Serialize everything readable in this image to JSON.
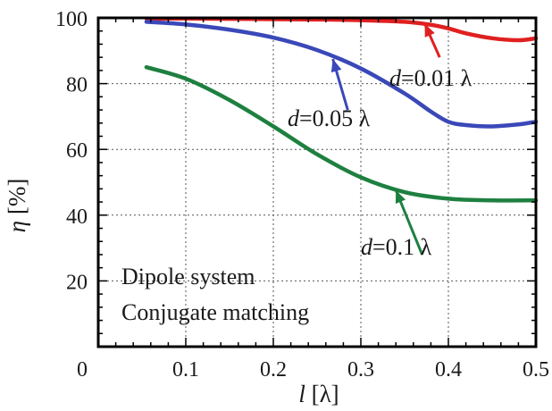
{
  "chart_data": {
    "type": "line",
    "xlabel": {
      "symbol": "l",
      "unit": "[λ]"
    },
    "ylabel": {
      "symbol": "η",
      "unit": "[%]"
    },
    "xlim": [
      0,
      0.5
    ],
    "ylim": [
      0,
      100
    ],
    "xticks": [
      0,
      0.1,
      0.2,
      0.3,
      0.4,
      0.5
    ],
    "yticks": [
      20,
      40,
      60,
      80,
      100
    ],
    "xtick_labels": [
      "0",
      "0.1",
      "0.2",
      "0.3",
      "0.4",
      "0.5"
    ],
    "ytick_labels": [
      "20",
      "40",
      "60",
      "80",
      "100"
    ],
    "grid": true,
    "series": [
      {
        "name": "d=0.01 λ",
        "color": "#e02020",
        "label": {
          "prefix": "d",
          "text": "=0.01 λ"
        },
        "x": [
          0.055,
          0.1,
          0.15,
          0.2,
          0.25,
          0.3,
          0.35,
          0.38,
          0.4,
          0.42,
          0.45,
          0.48,
          0.5
        ],
        "y": [
          99.8,
          99.8,
          99.7,
          99.6,
          99.5,
          99.3,
          98.8,
          97.9,
          96.8,
          95.3,
          93.8,
          93.2,
          93.8
        ]
      },
      {
        "name": "d=0.05 λ",
        "color": "#3a48b8",
        "label": {
          "prefix": "d",
          "text": "=0.05 λ"
        },
        "x": [
          0.055,
          0.1,
          0.15,
          0.2,
          0.25,
          0.3,
          0.35,
          0.38,
          0.4,
          0.42,
          0.45,
          0.48,
          0.5
        ],
        "y": [
          98.8,
          98.0,
          96.4,
          94.0,
          90.2,
          84.6,
          77.0,
          71.5,
          68.4,
          67.4,
          67.0,
          67.6,
          68.4
        ]
      },
      {
        "name": "d=0.1 λ",
        "color": "#1e8040",
        "label": {
          "prefix": "d",
          "text": "=0.1 λ"
        },
        "x": [
          0.055,
          0.1,
          0.15,
          0.2,
          0.25,
          0.3,
          0.35,
          0.4,
          0.45,
          0.5
        ],
        "y": [
          85.0,
          81.5,
          75.0,
          67.0,
          58.5,
          51.5,
          47.0,
          45.0,
          44.5,
          44.5
        ]
      }
    ],
    "annotations": [
      "Dipole system",
      "Conjugate matching"
    ]
  }
}
